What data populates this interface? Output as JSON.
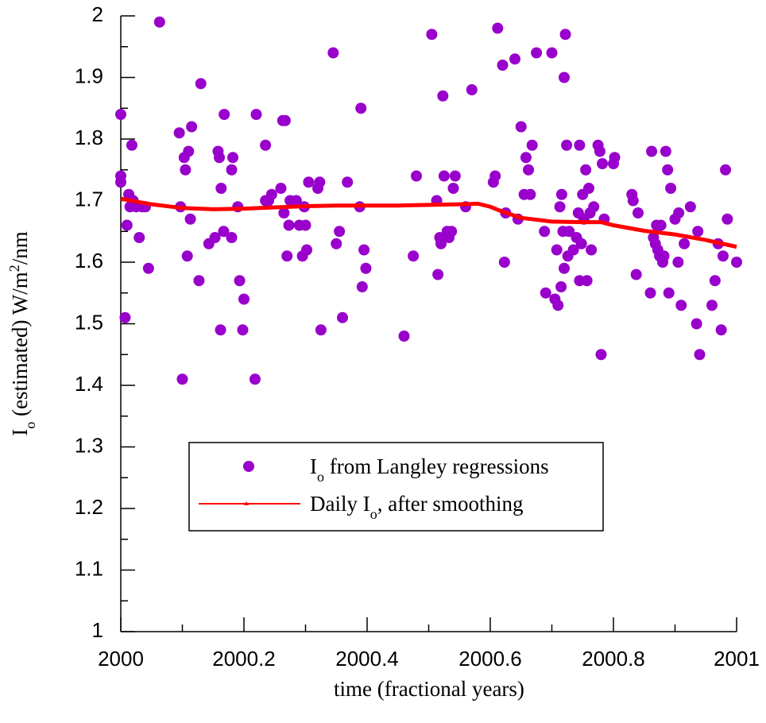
{
  "chart_data": {
    "type": "scatter",
    "xlabel": "time (fractional years)",
    "ylabel": [
      {
        "text": "I"
      },
      {
        "text": "o",
        "script": "sub"
      },
      {
        "text": " (estimated) W/m"
      },
      {
        "text": "2",
        "script": "super"
      },
      {
        "text": "/nm"
      }
    ],
    "xlim": [
      2000,
      2001
    ],
    "ylim": [
      1,
      2
    ],
    "xticks": [
      2000,
      2000.2,
      2000.4,
      2000.6,
      2000.8,
      2001
    ],
    "yticks": [
      1,
      1.1,
      1.2,
      1.3,
      1.4,
      1.5,
      1.6,
      1.7,
      1.8,
      1.9,
      2
    ],
    "series": [
      {
        "name": [
          {
            "text": "I"
          },
          {
            "text": "o",
            "script": "sub"
          },
          {
            "text": " from Langley regressions"
          }
        ],
        "type": "scatter",
        "color": "#9900cc",
        "x": [
          2000.0,
          2000.0,
          2000.0,
          2000.007,
          2000.01,
          2000.013,
          2000.015,
          2000.018,
          2000.02,
          2000.025,
          2000.03,
          2000.035,
          2000.04,
          2000.045,
          2000.063,
          2000.095,
          2000.097,
          2000.1,
          2000.103,
          2000.105,
          2000.108,
          2000.11,
          2000.113,
          2000.115,
          2000.127,
          2000.13,
          2000.143,
          2000.153,
          2000.158,
          2000.16,
          2000.162,
          2000.163,
          2000.167,
          2000.168,
          2000.18,
          2000.182,
          2000.18,
          2000.19,
          2000.193,
          2000.198,
          2000.2,
          2000.218,
          2000.22,
          2000.235,
          2000.235,
          2000.24,
          2000.245,
          2000.26,
          2000.263,
          2000.267,
          2000.265,
          2000.27,
          2000.273,
          2000.275,
          2000.285,
          2000.29,
          2000.295,
          2000.298,
          2000.3,
          2000.302,
          2000.305,
          2000.32,
          2000.323,
          2000.325,
          2000.345,
          2000.35,
          2000.355,
          2000.36,
          2000.368,
          2000.388,
          2000.39,
          2000.392,
          2000.395,
          2000.398,
          2000.46,
          2000.475,
          2000.48,
          2000.505,
          2000.513,
          2000.515,
          2000.518,
          2000.52,
          2000.523,
          2000.525,
          2000.53,
          2000.533,
          2000.537,
          2000.54,
          2000.543,
          2000.56,
          2000.57,
          2000.605,
          2000.608,
          2000.612,
          2000.62,
          2000.623,
          2000.625,
          2000.64,
          2000.645,
          2000.65,
          2000.655,
          2000.658,
          2000.662,
          2000.665,
          2000.668,
          2000.675,
          2000.688,
          2000.69,
          2000.7,
          2000.705,
          2000.708,
          2000.71,
          2000.713,
          2000.715,
          2000.716,
          2000.718,
          2000.72,
          2000.72,
          2000.722,
          2000.724,
          2000.726,
          2000.728,
          2000.735,
          2000.74,
          2000.743,
          2000.745,
          2000.745,
          2000.748,
          2000.75,
          2000.752,
          2000.755,
          2000.757,
          2000.76,
          2000.762,
          2000.764,
          2000.768,
          2000.775,
          2000.778,
          2000.78,
          2000.782,
          2000.785,
          2000.8,
          2000.802,
          2000.83,
          2000.832,
          2000.837,
          2000.84,
          2000.86,
          2000.862,
          2000.865,
          2000.868,
          2000.87,
          2000.872,
          2000.875,
          2000.877,
          2000.88,
          2000.882,
          2000.885,
          2000.888,
          2000.89,
          2000.893,
          2000.9,
          2000.905,
          2000.906,
          2000.91,
          2000.915,
          2000.925,
          2000.935,
          2000.937,
          2000.94,
          2000.96,
          2000.965,
          2000.97,
          2000.975,
          2000.978,
          2000.982,
          2000.985,
          2001.0
        ],
        "values": [
          1.73,
          1.74,
          1.84,
          1.51,
          1.66,
          1.71,
          1.69,
          1.79,
          1.7,
          1.69,
          1.64,
          1.69,
          1.69,
          1.59,
          1.99,
          1.81,
          1.69,
          1.41,
          1.77,
          1.75,
          1.61,
          1.78,
          1.67,
          1.82,
          1.57,
          1.89,
          1.63,
          1.64,
          1.78,
          1.77,
          1.49,
          1.72,
          1.65,
          1.84,
          1.75,
          1.77,
          1.64,
          1.69,
          1.57,
          1.49,
          1.54,
          1.41,
          1.84,
          1.79,
          1.7,
          1.7,
          1.71,
          1.72,
          1.83,
          1.83,
          1.68,
          1.61,
          1.66,
          1.7,
          1.7,
          1.66,
          1.61,
          1.69,
          1.66,
          1.62,
          1.73,
          1.72,
          1.73,
          1.49,
          1.94,
          1.63,
          1.65,
          1.51,
          1.73,
          1.69,
          1.85,
          1.56,
          1.62,
          1.59,
          1.48,
          1.61,
          1.74,
          1.97,
          1.7,
          1.58,
          1.64,
          1.63,
          1.87,
          1.74,
          1.65,
          1.64,
          1.65,
          1.72,
          1.74,
          1.69,
          1.88,
          1.73,
          1.74,
          1.98,
          1.92,
          1.6,
          1.68,
          1.93,
          1.67,
          1.82,
          1.71,
          1.77,
          1.75,
          1.71,
          1.79,
          1.94,
          1.65,
          1.55,
          1.94,
          1.54,
          1.62,
          1.53,
          1.69,
          1.56,
          1.71,
          1.65,
          1.59,
          1.9,
          1.97,
          1.79,
          1.61,
          1.65,
          1.62,
          1.64,
          1.68,
          1.79,
          1.57,
          1.63,
          1.71,
          1.67,
          1.75,
          1.57,
          1.72,
          1.68,
          1.62,
          1.69,
          1.79,
          1.78,
          1.45,
          1.76,
          1.67,
          1.76,
          1.77,
          1.71,
          1.7,
          1.58,
          1.68,
          1.55,
          1.78,
          1.64,
          1.63,
          1.66,
          1.62,
          1.61,
          1.66,
          1.6,
          1.61,
          1.78,
          1.75,
          1.55,
          1.72,
          1.67,
          1.6,
          1.68,
          1.53,
          1.63,
          1.69,
          1.5,
          1.65,
          1.45,
          1.53,
          1.57,
          1.63,
          1.49,
          1.61,
          1.75,
          1.67,
          1.6
        ]
      },
      {
        "name": [
          {
            "text": "Daily I"
          },
          {
            "text": "o",
            "script": "sub"
          },
          {
            "text": ", after smoothing"
          }
        ],
        "type": "line",
        "color": "#ff0000",
        "x": [
          2000,
          2000.05,
          2000.1,
          2000.15,
          2000.2,
          2000.25,
          2000.3,
          2000.35,
          2000.4,
          2000.45,
          2000.5,
          2000.55,
          2000.58,
          2000.6,
          2000.62,
          2000.65,
          2000.7,
          2000.75,
          2000.78,
          2000.8,
          2000.85,
          2000.9,
          2000.95,
          2001
        ],
        "values": [
          1.703,
          1.694,
          1.688,
          1.686,
          1.687,
          1.689,
          1.691,
          1.692,
          1.692,
          1.692,
          1.693,
          1.694,
          1.695,
          1.69,
          1.682,
          1.672,
          1.666,
          1.665,
          1.665,
          1.66,
          1.651,
          1.645,
          1.636,
          1.625
        ]
      }
    ]
  }
}
